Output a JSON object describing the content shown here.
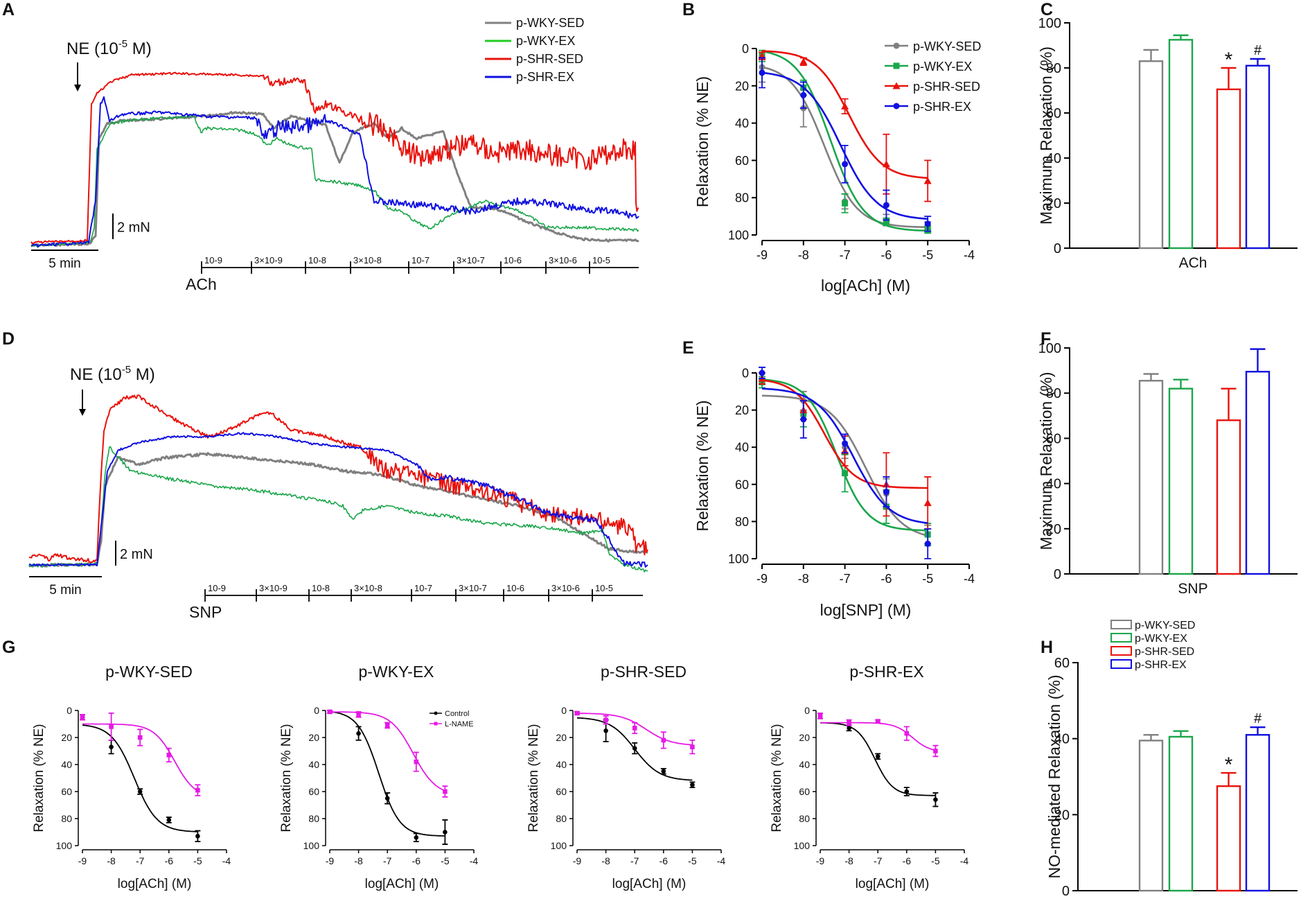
{
  "figure": {
    "panel_letters": [
      "A",
      "B",
      "C",
      "D",
      "E",
      "F",
      "G",
      "H"
    ],
    "colors": {
      "wky_sed": "#808080",
      "wky_ex": "#1aa64a",
      "wky_ex_legend": "#22cc22",
      "shr_sed": "#e8120c",
      "shr_ex": "#1010e0",
      "control": "#000000",
      "lname": "#e619e6"
    }
  },
  "traces": {
    "A": {
      "ne_label": "NE (10",
      "ne_exp": "-5",
      "ne_unit": " M)",
      "scale_label": "2 mN",
      "time_label": "5 min",
      "drug": "ACh",
      "doses": [
        "10-9",
        "3×10-9",
        "10-8",
        "3×10-8",
        "10-7",
        "3×10-7",
        "10-6",
        "3×10-6",
        "10-5"
      ],
      "legend": [
        "p-WKY-SED",
        "p-WKY-EX",
        "p-SHR-SED",
        "p-SHR-EX"
      ]
    },
    "D": {
      "ne_label": "NE (10",
      "ne_exp": "-5",
      "ne_unit": " M)",
      "scale_label": "2 mN",
      "time_label": "5 min",
      "drug": "SNP",
      "doses": [
        "10-9",
        "3×10-9",
        "10-8",
        "3×10-8",
        "10-7",
        "3×10-7",
        "10-6",
        "3×10-6",
        "10-5"
      ]
    }
  },
  "chart_data": [
    {
      "panel": "B",
      "type": "line",
      "xlabel": "log[ACh] (M)",
      "ylabel": "Relaxation (% NE)",
      "xlim": [
        -9,
        -4
      ],
      "ylim": [
        0,
        100
      ],
      "y_inverted": true,
      "xticks": [
        -9,
        -8,
        -7,
        -6,
        -5,
        -4
      ],
      "yticks": [
        0,
        20,
        40,
        60,
        80,
        100
      ],
      "x": [
        -9,
        -8,
        -7,
        -6,
        -5
      ],
      "series": [
        {
          "name": "p-WKY-SED",
          "color": "#808080",
          "marker": "circle",
          "values": [
            10,
            32,
            82,
            92,
            95
          ],
          "err": [
            8,
            10,
            4,
            3,
            2
          ],
          "curve": {
            "bottom": 8,
            "top": 96,
            "ec50": -7.5,
            "hill": 1.1
          }
        },
        {
          "name": "p-WKY-EX",
          "color": "#1aa64a",
          "marker": "square",
          "values": [
            4,
            21,
            83,
            93,
            97
          ],
          "err": [
            3,
            4,
            5,
            2,
            2
          ],
          "curve": {
            "bottom": 0,
            "top": 98,
            "ec50": -7.35,
            "hill": 1.1
          }
        },
        {
          "name": "p-SHR-SED",
          "color": "#e8120c",
          "marker": "triangle",
          "values": [
            4,
            7,
            31,
            62,
            71
          ],
          "err": [
            2,
            2,
            4,
            16,
            11
          ],
          "curve": {
            "bottom": 1,
            "top": 70,
            "ec50": -6.9,
            "hill": 1.1
          }
        },
        {
          "name": "p-SHR-EX",
          "color": "#1010e0",
          "marker": "circle",
          "values": [
            13,
            25,
            62,
            84,
            94
          ],
          "err": [
            8,
            7,
            10,
            8,
            4
          ],
          "curve": {
            "bottom": 12,
            "top": 92,
            "ec50": -7.1,
            "hill": 1.0
          }
        }
      ]
    },
    {
      "panel": "C",
      "type": "bar",
      "xlabel": "ACh",
      "ylabel": "Maximum Relaxation (%)",
      "ylim": [
        0,
        100
      ],
      "yticks": [
        0,
        20,
        40,
        60,
        80,
        100
      ],
      "categories": [
        "p-WKY-SED",
        "p-WKY-EX",
        "p-SHR-SED",
        "p-SHR-EX"
      ],
      "values": [
        83,
        92.5,
        70.5,
        81
      ],
      "err": [
        5,
        2,
        9.5,
        3
      ],
      "colors": [
        "#808080",
        "#1aa64a",
        "#e8120c",
        "#1010e0"
      ],
      "annotations": [
        "",
        "",
        "*",
        "#"
      ]
    },
    {
      "panel": "E",
      "type": "line",
      "xlabel": "log[SNP] (M)",
      "ylabel": "Relaxation (% NE)",
      "xlim": [
        -9,
        -4
      ],
      "ylim": [
        0,
        100
      ],
      "y_inverted": true,
      "xticks": [
        -9,
        -8,
        -7,
        -6,
        -5,
        -4
      ],
      "yticks": [
        0,
        20,
        40,
        60,
        80,
        100
      ],
      "x": [
        -9,
        -8,
        -7,
        -6,
        -5
      ],
      "series": [
        {
          "name": "p-WKY-SED",
          "color": "#808080",
          "marker": "circle",
          "values": [
            5,
            15,
            40,
            65,
            87
          ],
          "err": [
            3,
            5,
            6,
            8,
            5
          ],
          "curve": {
            "bottom": 12,
            "top": 90,
            "ec50": -6.5,
            "hill": 1.0
          }
        },
        {
          "name": "p-WKY-EX",
          "color": "#1aa64a",
          "marker": "square",
          "values": [
            5,
            22,
            54,
            72,
            87
          ],
          "err": [
            3,
            7,
            10,
            9,
            6
          ],
          "curve": {
            "bottom": 3,
            "top": 85,
            "ec50": -7.2,
            "hill": 1.2
          }
        },
        {
          "name": "p-SHR-SED",
          "color": "#e8120c",
          "marker": "triangle",
          "values": [
            3,
            20,
            42,
            60,
            70
          ],
          "err": [
            3,
            5,
            8,
            17,
            14
          ],
          "curve": {
            "bottom": 3,
            "top": 62,
            "ec50": -7.5,
            "hill": 1.2
          }
        },
        {
          "name": "p-SHR-EX",
          "color": "#1010e0",
          "marker": "circle",
          "values": [
            0,
            25,
            38,
            64,
            92
          ],
          "err": [
            3,
            10,
            5,
            8,
            8
          ],
          "curve": {
            "bottom": 8,
            "top": 82,
            "ec50": -6.8,
            "hill": 1.0
          }
        }
      ]
    },
    {
      "panel": "F",
      "type": "bar",
      "xlabel": "SNP",
      "ylabel": "Maximum Relaxation (%)",
      "ylim": [
        0,
        100
      ],
      "yticks": [
        0,
        20,
        40,
        60,
        80,
        100
      ],
      "categories": [
        "p-WKY-SED",
        "p-WKY-EX",
        "p-SHR-SED",
        "p-SHR-EX"
      ],
      "values": [
        85.5,
        82,
        68,
        89.5
      ],
      "err": [
        3,
        4,
        14,
        10
      ],
      "colors": [
        "#808080",
        "#1aa64a",
        "#e8120c",
        "#1010e0"
      ],
      "annotations": [
        "",
        "",
        "",
        ""
      ]
    },
    {
      "panel": "G1",
      "type": "line",
      "title": "p-WKY-SED",
      "xlabel": "log[ACh] (M)",
      "ylabel": "Relaxation (% NE)",
      "xlim": [
        -9,
        -4
      ],
      "ylim": [
        0,
        100
      ],
      "y_inverted": true,
      "xticks": [
        -9,
        -8,
        -7,
        -6,
        -5,
        -4
      ],
      "yticks": [
        0,
        20,
        40,
        60,
        80,
        100
      ],
      "x": [
        -9,
        -8,
        -7,
        -6,
        -5
      ],
      "series": [
        {
          "name": "Control",
          "color": "#000000",
          "marker": "circle",
          "values": [
            5,
            27,
            60,
            81,
            93
          ],
          "err": [
            2,
            5,
            2,
            2,
            4
          ],
          "curve": {
            "bottom": 10,
            "top": 90,
            "ec50": -7.2,
            "hill": 1.1
          }
        },
        {
          "name": "L-NAME",
          "color": "#e619e6",
          "marker": "square",
          "values": [
            5,
            12,
            20,
            33,
            59
          ],
          "err": [
            2,
            10,
            6,
            5,
            4
          ],
          "curve": {
            "bottom": 10,
            "top": 65,
            "ec50": -5.8,
            "hill": 1.2
          }
        }
      ]
    },
    {
      "panel": "G2",
      "type": "line",
      "title": "p-WKY-EX",
      "xlabel": "log[ACh] (M)",
      "ylabel": "Relaxation (% NE)",
      "xlim": [
        -9,
        -4
      ],
      "ylim": [
        0,
        100
      ],
      "y_inverted": true,
      "xticks": [
        -9,
        -8,
        -7,
        -6,
        -5,
        -4
      ],
      "yticks": [
        0,
        20,
        40,
        60,
        80,
        100
      ],
      "x": [
        -9,
        -8,
        -7,
        -6,
        -5
      ],
      "legend": [
        "Control",
        "L-NAME"
      ],
      "series": [
        {
          "name": "Control",
          "color": "#000000",
          "marker": "circle",
          "values": [
            1,
            17,
            65,
            94,
            90
          ],
          "err": [
            1,
            5,
            4,
            3,
            9
          ],
          "curve": {
            "bottom": 0,
            "top": 93,
            "ec50": -7.3,
            "hill": 1.2
          }
        },
        {
          "name": "L-NAME",
          "color": "#e619e6",
          "marker": "square",
          "values": [
            1,
            3,
            11,
            38,
            60
          ],
          "err": [
            1,
            2,
            2,
            7,
            4
          ],
          "curve": {
            "bottom": 1,
            "top": 63,
            "ec50": -6.1,
            "hill": 1.1
          }
        }
      ]
    },
    {
      "panel": "G3",
      "type": "line",
      "title": "p-SHR-SED",
      "xlabel": "log[ACh] (M)",
      "ylabel": "Relaxation (% NE)",
      "xlim": [
        -9,
        -4
      ],
      "ylim": [
        0,
        100
      ],
      "y_inverted": true,
      "xticks": [
        -9,
        -8,
        -7,
        -6,
        -5,
        -4
      ],
      "yticks": [
        0,
        20,
        40,
        60,
        80,
        100
      ],
      "x": [
        -9,
        -8,
        -7,
        -6,
        -5
      ],
      "series": [
        {
          "name": "Control",
          "color": "#000000",
          "marker": "circle",
          "values": [
            2,
            15,
            28,
            45,
            55
          ],
          "err": [
            1,
            8,
            4,
            2,
            2
          ],
          "curve": {
            "bottom": 5,
            "top": 52,
            "ec50": -7.0,
            "hill": 1.0
          }
        },
        {
          "name": "L-NAME",
          "color": "#e619e6",
          "marker": "square",
          "values": [
            2,
            7,
            13,
            22,
            27
          ],
          "err": [
            1,
            3,
            4,
            6,
            5
          ],
          "curve": {
            "bottom": 2,
            "top": 26,
            "ec50": -6.6,
            "hill": 1.0
          }
        }
      ]
    },
    {
      "panel": "G4",
      "type": "line",
      "title": "p-SHR-EX",
      "xlabel": "log[ACh] (M)",
      "ylabel": "Relaxation (% NE)",
      "xlim": [
        -9,
        -4
      ],
      "ylim": [
        0,
        100
      ],
      "y_inverted": true,
      "xticks": [
        -9,
        -8,
        -7,
        -6,
        -5,
        -4
      ],
      "yticks": [
        0,
        20,
        40,
        60,
        80,
        100
      ],
      "x": [
        -9,
        -8,
        -7,
        -6,
        -5
      ],
      "series": [
        {
          "name": "Control",
          "color": "#000000",
          "marker": "circle",
          "values": [
            4,
            13,
            34,
            60,
            66
          ],
          "err": [
            2,
            2,
            2,
            3,
            5
          ],
          "curve": {
            "bottom": 9,
            "top": 63,
            "ec50": -7.1,
            "hill": 1.4
          }
        },
        {
          "name": "L-NAME",
          "color": "#e619e6",
          "marker": "square",
          "values": [
            4,
            9,
            8,
            17,
            30
          ],
          "err": [
            2,
            2,
            1,
            5,
            4
          ],
          "curve": {
            "bottom": 9,
            "top": 31,
            "ec50": -5.8,
            "hill": 1.4
          }
        }
      ]
    },
    {
      "panel": "H",
      "type": "bar",
      "xlabel": "",
      "ylabel": "NO-mediated Relaxation (%)",
      "ylim": [
        0,
        60
      ],
      "yticks": [
        0,
        20,
        40,
        60
      ],
      "categories": [
        "p-WKY-SED",
        "p-WKY-EX",
        "p-SHR-SED",
        "p-SHR-EX"
      ],
      "values": [
        39.5,
        40.5,
        27.5,
        41
      ],
      "err": [
        1.5,
        1.5,
        3.5,
        2
      ],
      "colors": [
        "#808080",
        "#1aa64a",
        "#e8120c",
        "#1010e0"
      ],
      "annotations": [
        "",
        "",
        "*",
        "#"
      ],
      "legend": [
        "p-WKY-SED",
        "p-WKY-EX",
        "p-SHR-SED",
        "p-SHR-EX"
      ]
    }
  ]
}
